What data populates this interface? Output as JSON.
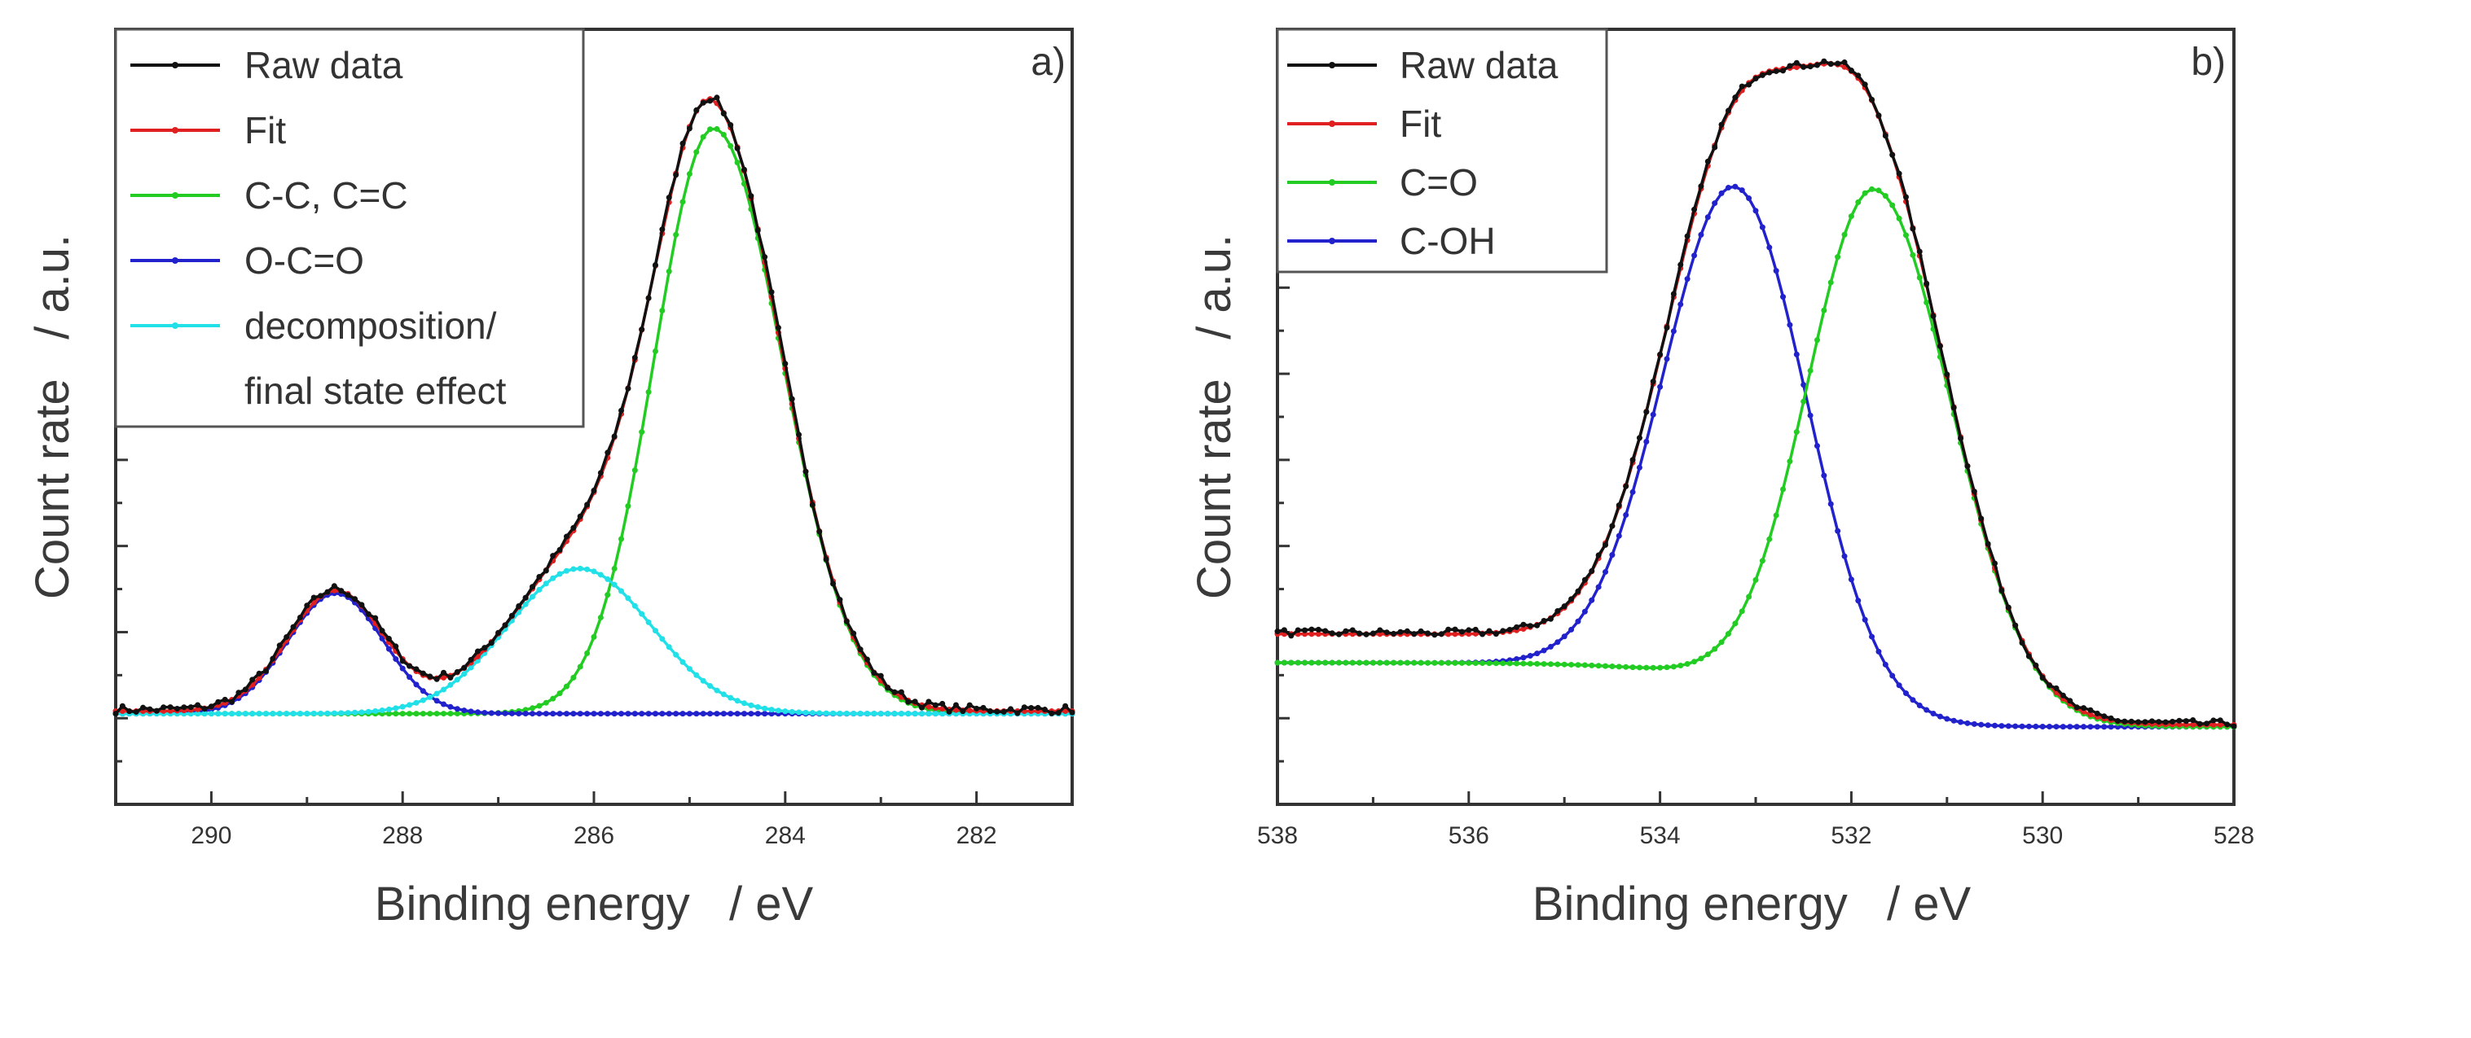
{
  "chart_data": [
    {
      "type": "line",
      "panel_label": "a)",
      "title": "",
      "xlabel": "Binding energy   / eV",
      "ylabel": "Count rate   / a.u.",
      "xlim": [
        291,
        281
      ],
      "ylim": [
        -0.5,
        4.2
      ],
      "x_ticks": [
        290,
        288,
        286,
        284,
        282
      ],
      "x_tick_labels": [
        "290",
        "288",
        "286",
        "284",
        "282"
      ],
      "y_tick_labels_shown": false,
      "legend_position": "top-left",
      "legend": [
        {
          "label": "Raw data",
          "color": "#111111"
        },
        {
          "label": "Fit",
          "color": "#e02020"
        },
        {
          "label": "C-C, C=C",
          "color": "#22cc22"
        },
        {
          "label": "O-C=O",
          "color": "#2222cc"
        },
        {
          "label": "decomposition/",
          "label_line2": "final state effect",
          "color": "#22e0e8"
        }
      ],
      "background": 0.05,
      "peaks": [
        {
          "name": "C-C, C=C",
          "center": 284.75,
          "height": 3.55,
          "width_left": 0.62,
          "width_right": 0.72,
          "color": "#22cc22"
        },
        {
          "name": "O-C=O",
          "center": 288.7,
          "height": 0.73,
          "width_left": 0.5,
          "width_right": 0.5,
          "color": "#2222cc"
        },
        {
          "name": "decomposition/ final state effect",
          "center": 286.15,
          "height": 0.88,
          "width_left": 0.75,
          "width_right": 0.75,
          "color": "#22e0e8"
        }
      ]
    },
    {
      "type": "line",
      "panel_label": "b)",
      "title": "",
      "xlabel": "Binding energy   / eV",
      "ylabel": "Count rate   / a.u.",
      "xlim": [
        538,
        528
      ],
      "ylim": [
        -0.6,
        5.2
      ],
      "x_ticks": [
        538,
        536,
        534,
        532,
        530,
        528
      ],
      "x_tick_labels": [
        "538",
        "536",
        "534",
        "532",
        "530",
        "528"
      ],
      "y_tick_labels_shown": false,
      "legend_position": "top-left",
      "legend": [
        {
          "label": "Raw data",
          "color": "#111111"
        },
        {
          "label": "Fit",
          "color": "#e02020"
        },
        {
          "label": "C=O",
          "color": "#22cc22"
        },
        {
          "label": "C-OH",
          "color": "#2222cc"
        }
      ],
      "background": 0.0,
      "peaks": [
        {
          "name": "C-OH",
          "center": 533.2,
          "height": 3.8,
          "width_left": 0.75,
          "width_right": 0.75,
          "step": 0.2,
          "color": "#2222cc"
        },
        {
          "name": "C=O",
          "center": 531.75,
          "height": 3.9,
          "width_left": 0.7,
          "width_right": 0.8,
          "step": 0.2,
          "color": "#22cc22"
        }
      ]
    }
  ]
}
